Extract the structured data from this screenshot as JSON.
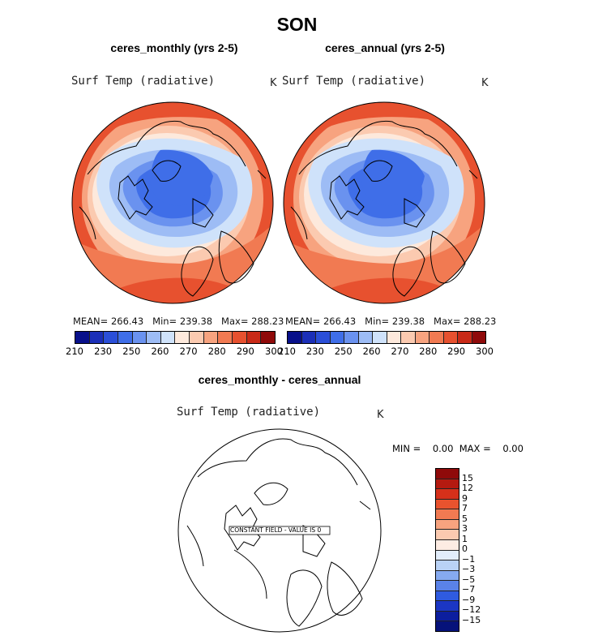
{
  "title": "SON",
  "panels": [
    {
      "title": "ceres_monthly (yrs 2-5)",
      "variable": "Surf Temp (radiative)",
      "unit": "K",
      "stats": "MEAN= 266.43   Min= 239.38   Max= 288.23"
    },
    {
      "title": "ceres_annual (yrs 2-5)",
      "variable": "Surf Temp (radiative)",
      "unit": "K",
      "stats": "MEAN= 266.43   Min= 239.38   Max= 288.23"
    }
  ],
  "diff_panel": {
    "title": "ceres_monthly - ceres_annual",
    "variable": "Surf Temp (radiative)",
    "unit": "K",
    "minmax": "MIN =    0.00  MAX =    0.00",
    "annotation": "CONSTANT FIELD - VALUE IS 0"
  },
  "colorbar": {
    "ticks": [
      "210",
      "230",
      "250",
      "260",
      "270",
      "280",
      "290",
      "300"
    ],
    "colors": [
      "#08108a",
      "#1b2fb8",
      "#2b4fd8",
      "#3f6ee8",
      "#6a92ef",
      "#9dbcf5",
      "#cfe2fa",
      "#fde9dc",
      "#fbcab0",
      "#f7a37f",
      "#f17a52",
      "#e7512f",
      "#c92a17",
      "#8f0a0a"
    ]
  },
  "diff_colorbar": {
    "ticks": [
      "15",
      "12",
      "9",
      "7",
      "5",
      "3",
      "1",
      "0",
      "−1",
      "−3",
      "−5",
      "−7",
      "−9",
      "−12",
      "−15"
    ],
    "colors": [
      "#8f0a0a",
      "#b41a10",
      "#d6301a",
      "#e9532e",
      "#f17a52",
      "#f7a37f",
      "#fbcab0",
      "#fdece3",
      "#e2edfb",
      "#b9d2f6",
      "#86aaf0",
      "#5a82e8",
      "#2f5be0",
      "#1b36c4",
      "#0c1e9e",
      "#06127a"
    ]
  }
}
